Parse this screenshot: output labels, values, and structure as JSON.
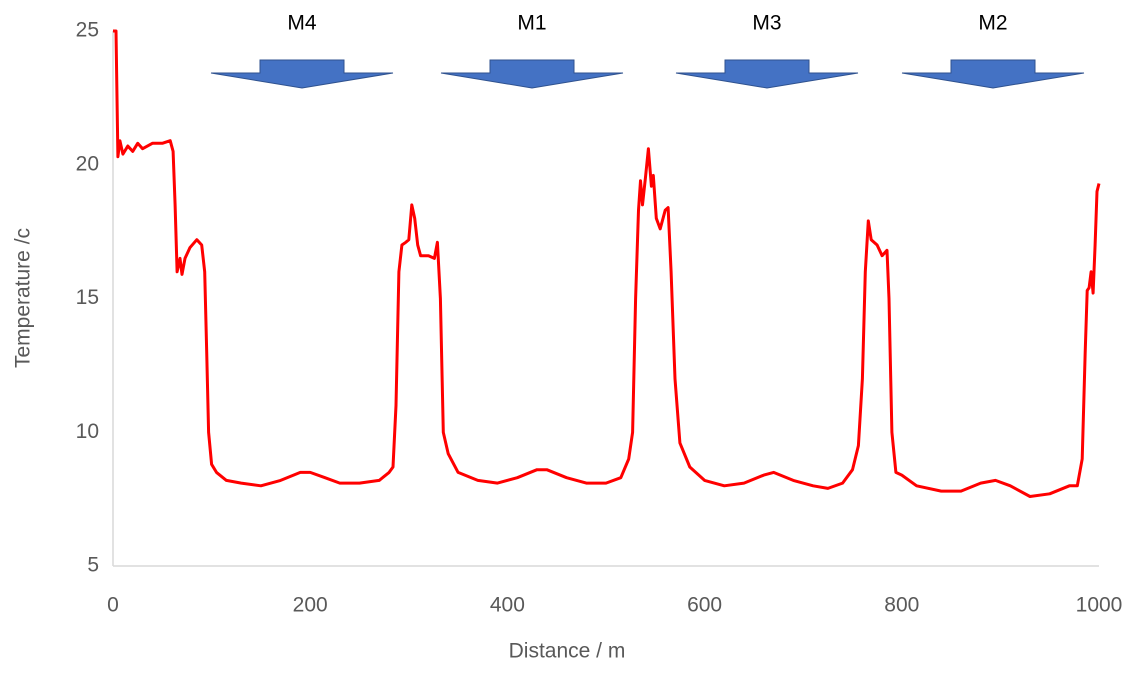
{
  "chart_data": {
    "type": "line",
    "x_label": "Distance / m",
    "y_label": "Temperature /c",
    "annotations": [
      "M4",
      "M1",
      "M3",
      "M2"
    ],
    "color": "#ff0000",
    "x": [
      0,
      3,
      5,
      7,
      10,
      15,
      20,
      25,
      30,
      40,
      50,
      58,
      61,
      63,
      65,
      68,
      70,
      73,
      78,
      85,
      90,
      93,
      95,
      97,
      100,
      105,
      115,
      130,
      150,
      170,
      190,
      200,
      215,
      230,
      250,
      270,
      280,
      284,
      287,
      290,
      293,
      297,
      300,
      303,
      306,
      309,
      312,
      320,
      326,
      329,
      332,
      335,
      340,
      350,
      370,
      390,
      410,
      430,
      440,
      460,
      480,
      500,
      515,
      523,
      527,
      530,
      533,
      535,
      537,
      540,
      543,
      546,
      548,
      551,
      555,
      560,
      563,
      566,
      570,
      575,
      585,
      600,
      620,
      640,
      660,
      670,
      690,
      710,
      725,
      740,
      750,
      756,
      760,
      763,
      766,
      769,
      775,
      780,
      785,
      787,
      790,
      794,
      800,
      815,
      840,
      860,
      880,
      895,
      910,
      930,
      950,
      970,
      978,
      983,
      986,
      988,
      990,
      992,
      994,
      996,
      998,
      1000
    ],
    "values": [
      25,
      25,
      20.3,
      20.9,
      20.4,
      20.7,
      20.5,
      20.8,
      20.6,
      20.8,
      20.8,
      20.9,
      20.5,
      18.5,
      16.0,
      16.5,
      15.9,
      16.5,
      16.9,
      17.2,
      17.0,
      16.0,
      13,
      10,
      8.8,
      8.5,
      8.2,
      8.1,
      8.0,
      8.2,
      8.5,
      8.5,
      8.3,
      8.1,
      8.1,
      8.2,
      8.5,
      8.7,
      11,
      16,
      17.0,
      17.1,
      17.2,
      18.5,
      18.0,
      17.0,
      16.6,
      16.6,
      16.5,
      17.1,
      15,
      10,
      9.2,
      8.5,
      8.2,
      8.1,
      8.3,
      8.6,
      8.6,
      8.3,
      8.1,
      8.1,
      8.3,
      9.0,
      10,
      15,
      18.3,
      19.4,
      18.5,
      19.5,
      20.6,
      19.2,
      19.6,
      18.0,
      17.6,
      18.3,
      18.4,
      16,
      12,
      9.6,
      8.7,
      8.2,
      8.0,
      8.1,
      8.4,
      8.5,
      8.2,
      8.0,
      7.9,
      8.1,
      8.6,
      9.5,
      12,
      16,
      17.9,
      17.2,
      17.0,
      16.6,
      16.8,
      15,
      10,
      8.5,
      8.4,
      8.0,
      7.8,
      7.8,
      8.1,
      8.2,
      8.0,
      7.6,
      7.7,
      8.0,
      8.0,
      9,
      13,
      15.3,
      15.4,
      16.0,
      15.2,
      17.0,
      19.0,
      19.3
    ],
    "xlim": [
      0,
      1000
    ],
    "xticks": [
      0,
      200,
      400,
      600,
      800,
      1000
    ],
    "ylim": [
      5,
      25
    ],
    "yticks": [
      5,
      10,
      15,
      20,
      25
    ],
    "grid": false
  }
}
